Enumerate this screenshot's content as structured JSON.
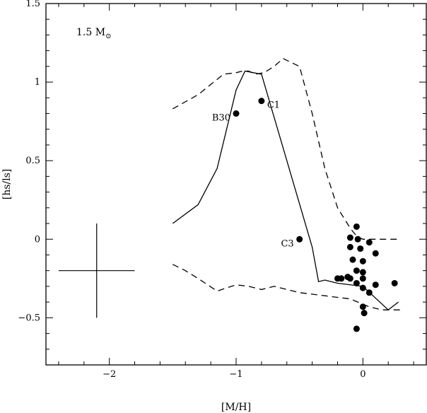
{
  "chart_data": {
    "type": "scatter",
    "title": "",
    "model_label": {
      "mass": "1.5 M",
      "subscript": "⊙"
    },
    "xlabel": "[M/H]",
    "ylabel": "[hs/ls]",
    "xlim": [
      -2.5,
      0.5
    ],
    "ylim": [
      -0.8,
      1.5
    ],
    "x_ticks": [
      {
        "value": -2,
        "label": "−2"
      },
      {
        "value": -1,
        "label": "−1"
      },
      {
        "value": 0,
        "label": "0"
      }
    ],
    "y_ticks": [
      {
        "value": -0.5,
        "label": "−0.5"
      },
      {
        "value": 0,
        "label": "0"
      },
      {
        "value": 0.5,
        "label": "0.5"
      },
      {
        "value": 1,
        "label": "1"
      },
      {
        "value": 1.5,
        "label": "1.5"
      }
    ],
    "x_minor_step": 0.2,
    "y_minor_step": 0.1,
    "series": [
      {
        "style": "solid",
        "x": [
          -1.5,
          -1.3,
          -1.15,
          -1.0,
          -0.93,
          -0.8,
          -0.4,
          -0.35,
          -0.3,
          -0.2,
          0.0,
          0.2,
          0.28
        ],
        "y": [
          0.1,
          0.22,
          0.45,
          0.95,
          1.07,
          1.05,
          -0.05,
          -0.27,
          -0.26,
          -0.28,
          -0.3,
          -0.45,
          -0.4
        ]
      },
      {
        "style": "dashed",
        "x": [
          -1.5,
          -1.3,
          -1.1,
          -1.0,
          -0.95,
          -0.9,
          -0.85,
          -0.78,
          -0.7,
          -0.63,
          -0.5,
          -0.4,
          -0.3,
          -0.2,
          -0.1,
          -0.05,
          0.0,
          0.05,
          0.15,
          0.3
        ],
        "y": [
          0.83,
          0.92,
          1.05,
          1.06,
          1.07,
          1.07,
          1.05,
          1.06,
          1.1,
          1.15,
          1.1,
          0.8,
          0.45,
          0.2,
          0.07,
          0.02,
          0.0,
          0.0,
          0.0,
          0.0
        ]
      },
      {
        "style": "dashed",
        "x": [
          -1.5,
          -1.4,
          -1.3,
          -1.15,
          -1.0,
          -0.9,
          -0.8,
          -0.7,
          -0.5,
          -0.3,
          -0.1,
          0.05,
          0.15,
          0.2,
          0.3
        ],
        "y": [
          -0.16,
          -0.2,
          -0.25,
          -0.33,
          -0.29,
          -0.3,
          -0.32,
          -0.3,
          -0.34,
          -0.36,
          -0.38,
          -0.43,
          -0.45,
          -0.45,
          -0.45
        ]
      }
    ],
    "points": [
      {
        "x": -1.0,
        "y": 0.8,
        "label": "B30",
        "label_pos": "left"
      },
      {
        "x": -0.8,
        "y": 0.88,
        "label": "C1",
        "label_pos": "right"
      },
      {
        "x": -0.5,
        "y": 0.0,
        "label": "C3",
        "label_pos": "left"
      },
      {
        "x": -0.05,
        "y": 0.08
      },
      {
        "x": -0.1,
        "y": 0.01
      },
      {
        "x": -0.04,
        "y": 0.0
      },
      {
        "x": 0.05,
        "y": -0.02
      },
      {
        "x": -0.1,
        "y": -0.05
      },
      {
        "x": -0.02,
        "y": -0.06
      },
      {
        "x": 0.1,
        "y": -0.09
      },
      {
        "x": -0.08,
        "y": -0.13
      },
      {
        "x": 0.0,
        "y": -0.14
      },
      {
        "x": -0.05,
        "y": -0.2
      },
      {
        "x": 0.0,
        "y": -0.21
      },
      {
        "x": -0.2,
        "y": -0.25
      },
      {
        "x": -0.17,
        "y": -0.25
      },
      {
        "x": -0.12,
        "y": -0.24
      },
      {
        "x": -0.1,
        "y": -0.25
      },
      {
        "x": 0.0,
        "y": -0.25
      },
      {
        "x": -0.05,
        "y": -0.28
      },
      {
        "x": 0.0,
        "y": -0.31
      },
      {
        "x": 0.1,
        "y": -0.29
      },
      {
        "x": 0.25,
        "y": -0.28
      },
      {
        "x": 0.05,
        "y": -0.34
      },
      {
        "x": 0.0,
        "y": -0.43
      },
      {
        "x": 0.01,
        "y": -0.47
      },
      {
        "x": -0.05,
        "y": -0.57
      }
    ],
    "error_bar": {
      "x": -2.1,
      "y": -0.2,
      "x_err": 0.3,
      "y_err": 0.3
    },
    "grid": false,
    "legend": "none"
  }
}
